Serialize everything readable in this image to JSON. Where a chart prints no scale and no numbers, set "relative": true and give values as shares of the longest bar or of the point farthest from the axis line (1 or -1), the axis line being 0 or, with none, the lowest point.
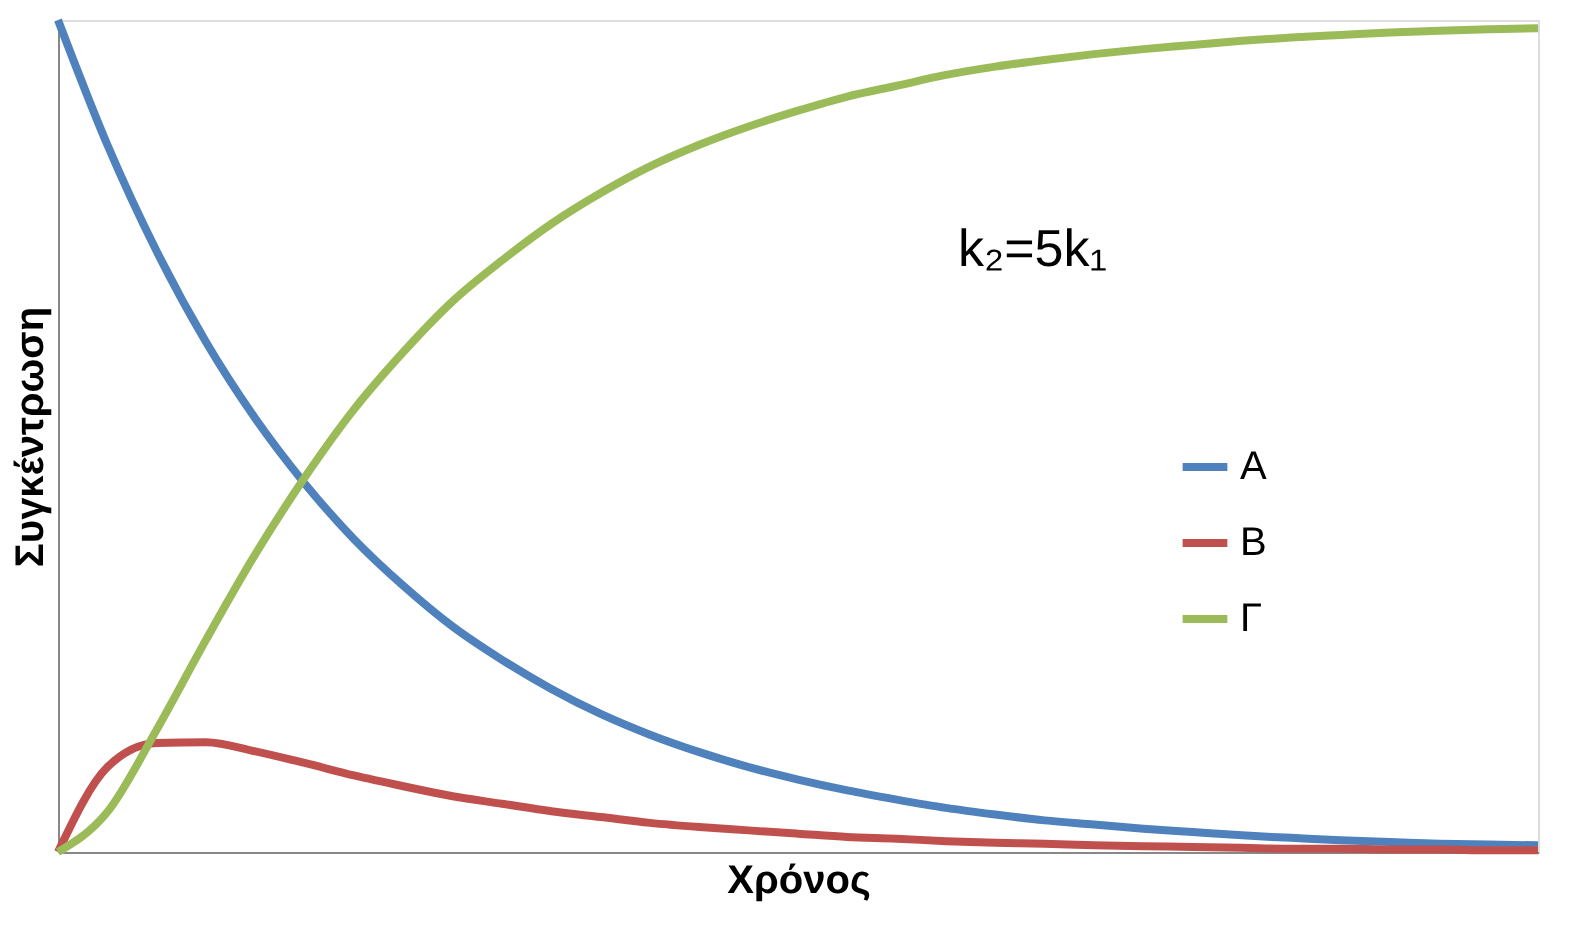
{
  "chart_data": {
    "type": "line",
    "relative": true,
    "xlabel": "Χρόνος",
    "ylabel": "Συγκέντρωση",
    "categories": [
      null,
      null,
      null,
      null,
      null,
      null,
      null,
      null,
      null,
      null,
      null,
      null,
      null,
      null,
      null,
      null,
      null,
      null,
      null,
      null,
      null,
      null,
      null,
      null,
      null,
      null,
      null,
      null,
      null,
      null,
      null
    ],
    "series": [
      {
        "name": "A",
        "color": "#4f81bd",
        "values": [
          1,
          0.85,
          0.722,
          0.613,
          0.521,
          0.443,
          0.376,
          0.32,
          0.271,
          0.231,
          0.196,
          0.166,
          0.141,
          0.12,
          0.102,
          0.087,
          0.074,
          0.063,
          0.053,
          0.045,
          0.038,
          0.033,
          0.028,
          0.024,
          0.02,
          0.017,
          0.014,
          0.012,
          0.01,
          0.009,
          0.008
        ]
      },
      {
        "name": "B",
        "color": "#c0504d",
        "values": [
          0,
          0.102,
          0.131,
          0.132,
          0.121,
          0.107,
          0.092,
          0.079,
          0.067,
          0.058,
          0.049,
          0.042,
          0.035,
          0.03,
          0.026,
          0.022,
          0.018,
          0.016,
          0.013,
          0.011,
          0.01,
          0.008,
          0.007,
          0.006,
          0.005,
          0.004,
          0.004,
          0.003,
          0.003,
          0.002,
          0.002
        ]
      },
      {
        "name": "Γ",
        "color": "#9bbb59",
        "values": [
          0,
          0.048,
          0.147,
          0.255,
          0.358,
          0.45,
          0.532,
          0.601,
          0.662,
          0.711,
          0.755,
          0.792,
          0.824,
          0.85,
          0.872,
          0.891,
          0.908,
          0.921,
          0.934,
          0.944,
          0.952,
          0.959,
          0.965,
          0.97,
          0.975,
          0.979,
          0.982,
          0.985,
          0.987,
          0.989,
          0.99
        ]
      }
    ],
    "annotations": [
      "k₂=5k₁"
    ],
    "legend": "right",
    "grid": false,
    "marker": "none",
    "line_style": "solid"
  }
}
